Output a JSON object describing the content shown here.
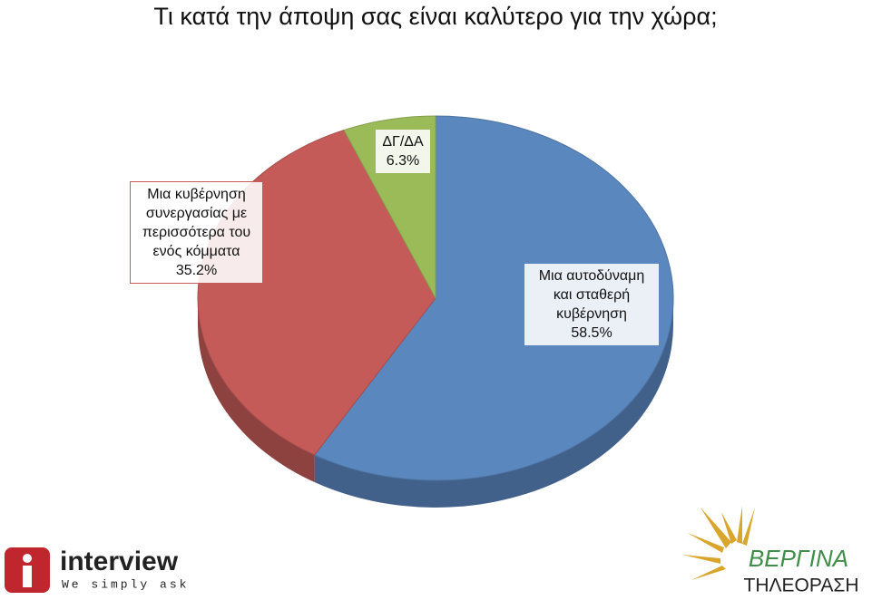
{
  "chart_data": {
    "type": "pie",
    "title": "Τι κατά την άποψη σας είναι καλύτερο για την χώρα;",
    "categories": [
      "Μια αυτοδύναμη και σταθερή κυβέρνηση",
      "Μια κυβέρνηση συνεργασίας με περισσότερα του ενός κόμματα",
      "ΔΓ/ΔΑ"
    ],
    "values": [
      58.5,
      35.2,
      6.3
    ],
    "value_labels": [
      "58.5%",
      "35.2%",
      "6.3%"
    ],
    "colors": [
      "#5b87bf",
      "#c45b58",
      "#9bbb59"
    ]
  },
  "logos": {
    "left_name": "interview",
    "left_slogan": "We simply ask",
    "right_name": "ΒΕΡΓΙΝΑ",
    "right_sub": "ΤΗΛΕΟΡΑΣΗ"
  }
}
